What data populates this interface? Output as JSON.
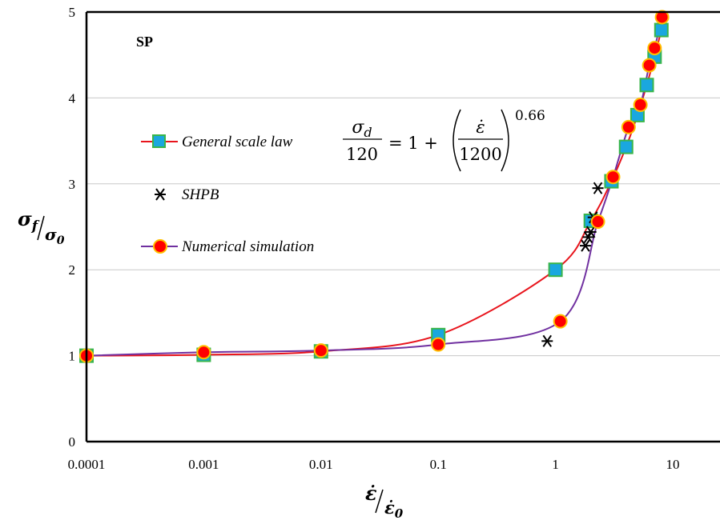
{
  "chart_data": {
    "type": "scatter",
    "panel_label": "SP",
    "x_scale": "log",
    "xlim": [
      0.0001,
      20
    ],
    "ylim": [
      0,
      5
    ],
    "x_ticks": [
      {
        "value": 0.0001,
        "label": "0.0001"
      },
      {
        "value": 0.001,
        "label": "0.001"
      },
      {
        "value": 0.01,
        "label": "0.01"
      },
      {
        "value": 0.1,
        "label": "0.1"
      },
      {
        "value": 1,
        "label": "1"
      },
      {
        "value": 10,
        "label": "10"
      }
    ],
    "y_ticks": [
      {
        "value": 0,
        "label": "0"
      },
      {
        "value": 1,
        "label": "1"
      },
      {
        "value": 2,
        "label": "2"
      },
      {
        "value": 3,
        "label": "3"
      },
      {
        "value": 4,
        "label": "4"
      },
      {
        "value": 5,
        "label": "5"
      }
    ],
    "grid_y": true,
    "xlabel": {
      "num": "ε̇",
      "den": "ε̇0"
    },
    "ylabel": {
      "num": "σf",
      "den": "σ0"
    },
    "equation": {
      "lhs_num": "σd",
      "lhs_den": "120",
      "rhs": "= 1 +",
      "frac_num": "ε̇",
      "frac_den": "1200",
      "exponent": "0.66"
    },
    "series": [
      {
        "name": "General scale law",
        "kind": "line-square",
        "line_color": "#e8141c",
        "marker_fill": "#1aa7df",
        "marker_stroke": "#39b54a",
        "x": [
          0.0001,
          0.001,
          0.01,
          0.1,
          1,
          2,
          3,
          4,
          5,
          6,
          7,
          8
        ],
        "y": [
          1.0,
          1.01,
          1.05,
          1.24,
          2.0,
          2.57,
          3.03,
          3.43,
          3.8,
          4.15,
          4.48,
          4.79
        ]
      },
      {
        "name": "SHPB",
        "kind": "asterisk",
        "marker_color": "#000000",
        "x": [
          0.85,
          1.8,
          1.9,
          2.0,
          2.1,
          2.3
        ],
        "y": [
          1.17,
          2.28,
          2.38,
          2.44,
          2.61,
          2.95
        ]
      },
      {
        "name": "Numerical simulation",
        "kind": "line-circle",
        "line_color": "#7030a0",
        "marker_fill": "#ff0000",
        "marker_stroke": "#ffc000",
        "x": [
          0.0001,
          0.001,
          0.01,
          0.1,
          1.1,
          2.3,
          3.1,
          4.2,
          5.3,
          6.3,
          7.0,
          8.1
        ],
        "y": [
          1.0,
          1.04,
          1.06,
          1.13,
          1.4,
          2.56,
          3.08,
          3.66,
          3.92,
          4.38,
          4.58,
          4.94
        ]
      }
    ]
  }
}
